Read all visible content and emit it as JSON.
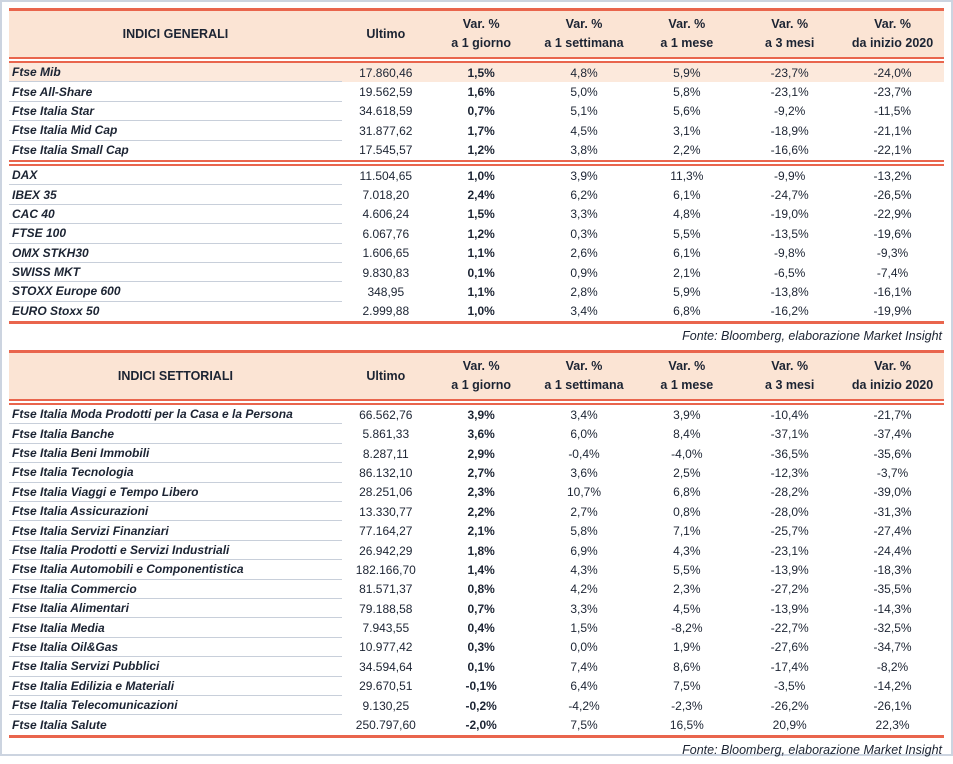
{
  "colors": {
    "accent_line": "#e9654d",
    "header_bg": "#fbe4d4",
    "highlight_row_bg": "#fce9dc",
    "text": "#1c2433",
    "row_divider": "#c8cfda",
    "frame_border": "#ccd4e0"
  },
  "header_labels": {
    "ultimo": "Ultimo",
    "var_top": "Var. %",
    "var_periods": [
      "a 1 giorno",
      "a 1 settimana",
      "a 1 mese",
      "a 3 mesi",
      "da inizio 2020"
    ]
  },
  "tables": [
    {
      "title": "INDICI GENERALI",
      "source": "Fonte: Bloomberg, elaborazione Market Insight",
      "separator_after": 4,
      "highlight_rows": [
        0
      ],
      "rows": [
        {
          "name": "Ftse Mib",
          "ultimo": "17.860,46",
          "vars": [
            "1,5%",
            "4,8%",
            "5,9%",
            "-23,7%",
            "-24,0%"
          ]
        },
        {
          "name": "Ftse All-Share",
          "ultimo": "19.562,59",
          "vars": [
            "1,6%",
            "5,0%",
            "5,8%",
            "-23,1%",
            "-23,7%"
          ]
        },
        {
          "name": "Ftse Italia Star",
          "ultimo": "34.618,59",
          "vars": [
            "0,7%",
            "5,1%",
            "5,6%",
            "-9,2%",
            "-11,5%"
          ]
        },
        {
          "name": "Ftse Italia Mid Cap",
          "ultimo": "31.877,62",
          "vars": [
            "1,7%",
            "4,5%",
            "3,1%",
            "-18,9%",
            "-21,1%"
          ]
        },
        {
          "name": "Ftse Italia Small Cap",
          "ultimo": "17.545,57",
          "vars": [
            "1,2%",
            "3,8%",
            "2,2%",
            "-16,6%",
            "-22,1%"
          ]
        },
        {
          "name": "DAX",
          "ultimo": "11.504,65",
          "vars": [
            "1,0%",
            "3,9%",
            "11,3%",
            "-9,9%",
            "-13,2%"
          ]
        },
        {
          "name": "IBEX 35",
          "ultimo": "7.018,20",
          "vars": [
            "2,4%",
            "6,2%",
            "6,1%",
            "-24,7%",
            "-26,5%"
          ]
        },
        {
          "name": "CAC 40",
          "ultimo": "4.606,24",
          "vars": [
            "1,5%",
            "3,3%",
            "4,8%",
            "-19,0%",
            "-22,9%"
          ]
        },
        {
          "name": "FTSE 100",
          "ultimo": "6.067,76",
          "vars": [
            "1,2%",
            "0,3%",
            "5,5%",
            "-13,5%",
            "-19,6%"
          ]
        },
        {
          "name": "OMX STKH30",
          "ultimo": "1.606,65",
          "vars": [
            "1,1%",
            "2,6%",
            "6,1%",
            "-9,8%",
            "-9,3%"
          ]
        },
        {
          "name": "SWISS MKT",
          "ultimo": "9.830,83",
          "vars": [
            "0,1%",
            "0,9%",
            "2,1%",
            "-6,5%",
            "-7,4%"
          ]
        },
        {
          "name": "STOXX Europe 600",
          "ultimo": "348,95",
          "vars": [
            "1,1%",
            "2,8%",
            "5,9%",
            "-13,8%",
            "-16,1%"
          ]
        },
        {
          "name": "EURO Stoxx 50",
          "ultimo": "2.999,88",
          "vars": [
            "1,0%",
            "3,4%",
            "6,8%",
            "-16,2%",
            "-19,9%"
          ]
        }
      ]
    },
    {
      "title": "INDICI SETTORIALI",
      "source": "Fonte: Bloomberg, elaborazione Market Insight",
      "separator_after": -1,
      "highlight_rows": [],
      "rows": [
        {
          "name": "Ftse Italia Moda Prodotti per la Casa e la Persona",
          "ultimo": "66.562,76",
          "vars": [
            "3,9%",
            "3,4%",
            "3,9%",
            "-10,4%",
            "-21,7%"
          ]
        },
        {
          "name": "Ftse Italia Banche",
          "ultimo": "5.861,33",
          "vars": [
            "3,6%",
            "6,0%",
            "8,4%",
            "-37,1%",
            "-37,4%"
          ]
        },
        {
          "name": "Ftse Italia Beni Immobili",
          "ultimo": "8.287,11",
          "vars": [
            "2,9%",
            "-0,4%",
            "-4,0%",
            "-36,5%",
            "-35,6%"
          ]
        },
        {
          "name": "Ftse Italia Tecnologia",
          "ultimo": "86.132,10",
          "vars": [
            "2,7%",
            "3,6%",
            "2,5%",
            "-12,3%",
            "-3,7%"
          ]
        },
        {
          "name": "Ftse Italia Viaggi e Tempo Libero",
          "ultimo": "28.251,06",
          "vars": [
            "2,3%",
            "10,7%",
            "6,8%",
            "-28,2%",
            "-39,0%"
          ]
        },
        {
          "name": "Ftse Italia Assicurazioni",
          "ultimo": "13.330,77",
          "vars": [
            "2,2%",
            "2,7%",
            "0,8%",
            "-28,0%",
            "-31,3%"
          ]
        },
        {
          "name": "Ftse Italia Servizi Finanziari",
          "ultimo": "77.164,27",
          "vars": [
            "2,1%",
            "5,8%",
            "7,1%",
            "-25,7%",
            "-27,4%"
          ]
        },
        {
          "name": "Ftse Italia Prodotti e Servizi Industriali",
          "ultimo": "26.942,29",
          "vars": [
            "1,8%",
            "6,9%",
            "4,3%",
            "-23,1%",
            "-24,4%"
          ]
        },
        {
          "name": "Ftse Italia Automobili e Componentistica",
          "ultimo": "182.166,70",
          "vars": [
            "1,4%",
            "4,3%",
            "5,5%",
            "-13,9%",
            "-18,3%"
          ]
        },
        {
          "name": "Ftse Italia Commercio",
          "ultimo": "81.571,37",
          "vars": [
            "0,8%",
            "4,2%",
            "2,3%",
            "-27,2%",
            "-35,5%"
          ]
        },
        {
          "name": "Ftse Italia Alimentari",
          "ultimo": "79.188,58",
          "vars": [
            "0,7%",
            "3,3%",
            "4,5%",
            "-13,9%",
            "-14,3%"
          ]
        },
        {
          "name": "Ftse Italia Media",
          "ultimo": "7.943,55",
          "vars": [
            "0,4%",
            "1,5%",
            "-8,2%",
            "-22,7%",
            "-32,5%"
          ]
        },
        {
          "name": "Ftse Italia Oil&Gas",
          "ultimo": "10.977,42",
          "vars": [
            "0,3%",
            "0,0%",
            "1,9%",
            "-27,6%",
            "-34,7%"
          ]
        },
        {
          "name": "Ftse Italia Servizi Pubblici",
          "ultimo": "34.594,64",
          "vars": [
            "0,1%",
            "7,4%",
            "8,6%",
            "-17,4%",
            "-8,2%"
          ]
        },
        {
          "name": "Ftse Italia Edilizia e Materiali",
          "ultimo": "29.670,51",
          "vars": [
            "-0,1%",
            "6,4%",
            "7,5%",
            "-3,5%",
            "-14,2%"
          ]
        },
        {
          "name": "Ftse Italia Telecomunicazioni",
          "ultimo": "9.130,25",
          "vars": [
            "-0,2%",
            "-4,2%",
            "-2,3%",
            "-26,2%",
            "-26,1%"
          ]
        },
        {
          "name": "Ftse Italia Salute",
          "ultimo": "250.797,60",
          "vars": [
            "-2,0%",
            "7,5%",
            "16,5%",
            "20,9%",
            "22,3%"
          ]
        }
      ]
    }
  ]
}
